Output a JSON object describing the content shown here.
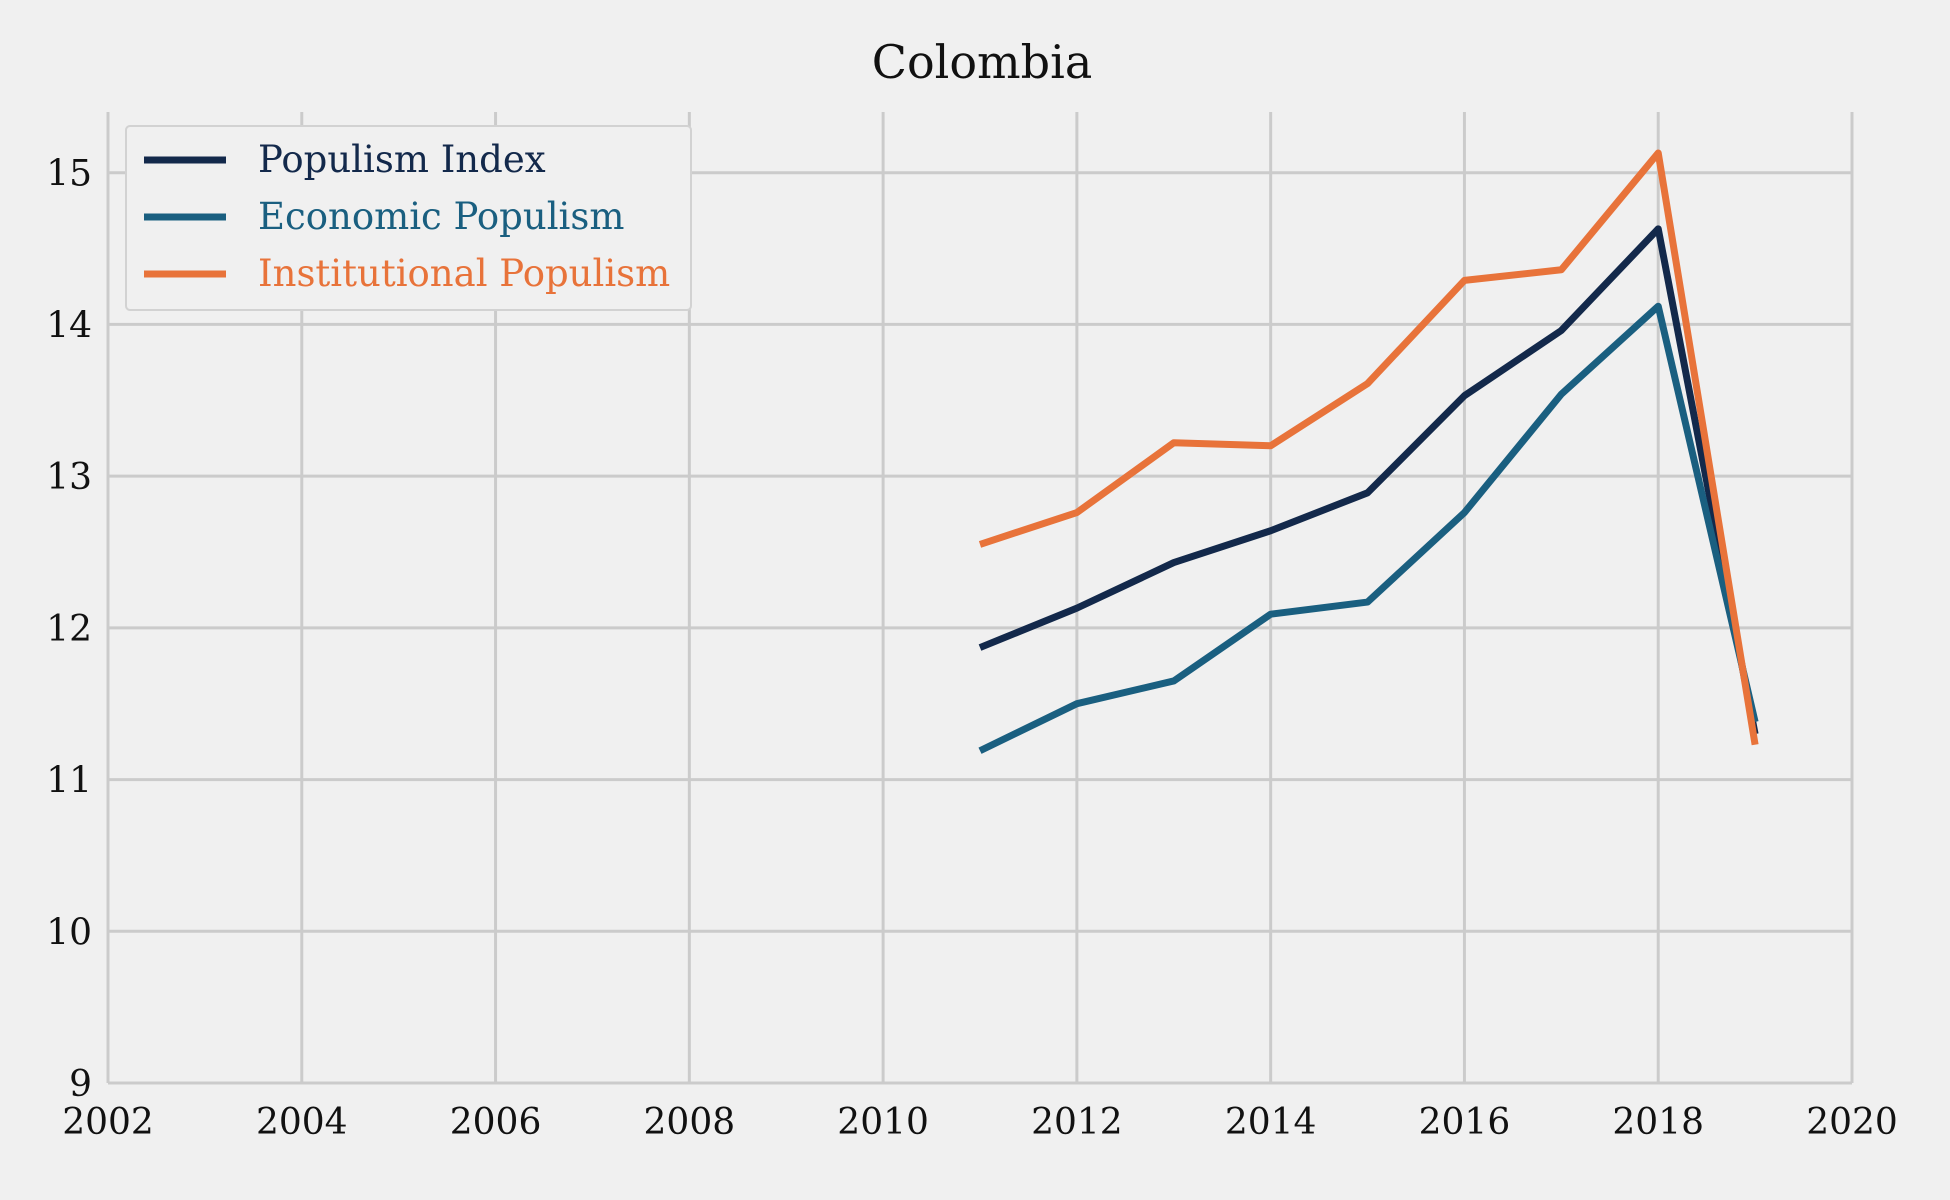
{
  "chart_data": {
    "type": "line",
    "title": "Colombia",
    "xlabel": "",
    "ylabel": "",
    "xlim": [
      2002,
      2020
    ],
    "ylim": [
      9,
      15.4
    ],
    "xticks": [
      "2002",
      "2004",
      "2006",
      "2008",
      "2010",
      "2012",
      "2014",
      "2016",
      "2018",
      "2020"
    ],
    "yticks": [
      "9",
      "10",
      "11",
      "12",
      "13",
      "14",
      "15"
    ],
    "grid": true,
    "legend_position": "top-left",
    "x": [
      2011,
      2012,
      2013,
      2014,
      2015,
      2016,
      2017,
      2018,
      2019
    ],
    "series": [
      {
        "name": "Populism Index",
        "color": "#13294b",
        "values": [
          11.87,
          12.13,
          12.43,
          12.64,
          12.89,
          13.53,
          13.96,
          14.63,
          11.3
        ]
      },
      {
        "name": "Economic Populism",
        "color": "#1a5f80",
        "values": [
          11.19,
          11.5,
          11.65,
          12.09,
          12.17,
          12.76,
          13.54,
          14.12,
          11.38
        ]
      },
      {
        "name": "Institutional Populism",
        "color": "#e8733a",
        "values": [
          12.55,
          12.76,
          13.22,
          13.2,
          13.61,
          14.29,
          14.36,
          15.13,
          11.23
        ]
      }
    ]
  }
}
